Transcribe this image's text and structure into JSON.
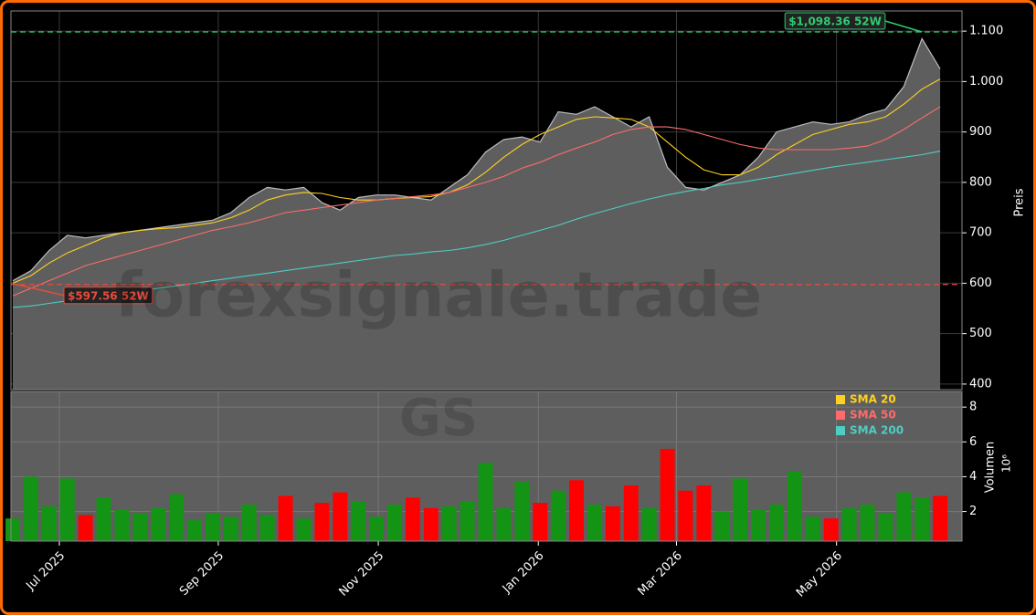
{
  "chart_data": {
    "type": "stock",
    "watermark": "forexsignale.trade",
    "ticker": "GS",
    "ylabel": "Preis",
    "y2label": "Volumen",
    "volume_offset": "10⁶",
    "x": [
      0,
      1,
      2,
      3,
      4,
      5,
      6,
      7,
      8,
      9,
      10,
      11,
      12,
      13,
      14,
      15,
      16,
      17,
      18,
      19,
      20,
      21,
      22,
      23,
      24,
      25,
      26,
      27,
      28,
      29,
      30,
      31,
      32,
      33,
      34,
      35,
      36,
      37,
      38,
      39,
      40,
      41,
      42,
      43,
      44,
      45,
      46,
      47,
      48,
      49,
      50,
      51
    ],
    "xlim": [
      -0.1,
      52.2
    ],
    "xticks": [
      {
        "value": 2.56,
        "label": "Jul 2025"
      },
      {
        "value": 11.3,
        "label": "Sep 2025"
      },
      {
        "value": 20.1,
        "label": "Nov 2025"
      },
      {
        "value": 28.9,
        "label": "Jan 2026"
      },
      {
        "value": 36.5,
        "label": "Mar 2026"
      },
      {
        "value": 45.3,
        "label": "May 2026"
      }
    ],
    "ylim": [
      389,
      1140
    ],
    "yticks": [
      400,
      500,
      600,
      700,
      800,
      900,
      {
        "value": 1000,
        "label": "1.000"
      },
      {
        "value": 1100,
        "label": "1.100"
      }
    ],
    "y2lim": [
      0.3,
      8.9
    ],
    "y2ticks": [
      2,
      4,
      6,
      8
    ],
    "price": {
      "color": "#bdbdbd",
      "fill": "#5e5e5e",
      "values": [
        605,
        625,
        665,
        695,
        690,
        695,
        700,
        705,
        710,
        715,
        720,
        725,
        740,
        770,
        790,
        785,
        790,
        760,
        745,
        770,
        775,
        775,
        770,
        765,
        790,
        815,
        860,
        885,
        890,
        880,
        940,
        935,
        950,
        930,
        910,
        930,
        830,
        790,
        785,
        800,
        815,
        850,
        900,
        910,
        920,
        915,
        920,
        935,
        945,
        990,
        1085,
        1025
      ]
    },
    "series": [
      {
        "name": "SMA 20",
        "color": "#ffd21f",
        "values": [
          600,
          615,
          640,
          660,
          675,
          690,
          700,
          705,
          708,
          710,
          715,
          720,
          730,
          745,
          765,
          775,
          780,
          778,
          770,
          765,
          765,
          768,
          770,
          772,
          780,
          795,
          820,
          850,
          875,
          895,
          910,
          925,
          930,
          928,
          925,
          910,
          880,
          850,
          825,
          815,
          815,
          830,
          855,
          875,
          895,
          905,
          915,
          920,
          930,
          955,
          985,
          1005
        ]
      },
      {
        "name": "SMA 50",
        "color": "#ff6b6b",
        "values": [
          575,
          590,
          605,
          620,
          635,
          645,
          655,
          665,
          675,
          685,
          695,
          705,
          712,
          720,
          730,
          740,
          745,
          750,
          755,
          760,
          765,
          768,
          772,
          775,
          780,
          790,
          800,
          812,
          828,
          840,
          855,
          868,
          880,
          895,
          905,
          910,
          910,
          905,
          895,
          885,
          875,
          868,
          865,
          865,
          865,
          865,
          868,
          872,
          885,
          905,
          928,
          950
        ]
      },
      {
        "name": "SMA 200",
        "color": "#4ecdc4",
        "values": [
          552,
          555,
          560,
          565,
          570,
          575,
          580,
          585,
          590,
          595,
          600,
          605,
          610,
          615,
          620,
          625,
          630,
          635,
          640,
          645,
          650,
          655,
          658,
          662,
          665,
          670,
          677,
          685,
          695,
          705,
          715,
          727,
          738,
          748,
          758,
          767,
          775,
          782,
          788,
          795,
          800,
          806,
          812,
          818,
          824,
          830,
          835,
          840,
          845,
          850,
          855,
          862
        ]
      }
    ],
    "volume": {
      "up_color": "#149414",
      "down_color": "#ff0000",
      "values": [
        1.6,
        4.0,
        2.3,
        3.9,
        1.8,
        2.8,
        2.1,
        1.9,
        2.2,
        3.0,
        1.5,
        1.9,
        1.7,
        2.4,
        1.8,
        2.9,
        1.6,
        2.5,
        3.1,
        2.6,
        1.7,
        2.4,
        2.8,
        2.2,
        2.3,
        2.6,
        4.8,
        2.2,
        3.7,
        2.5,
        3.2,
        3.8,
        2.4,
        2.3,
        3.5,
        2.2,
        5.6,
        3.2,
        3.5,
        2.0,
        3.9,
        2.1,
        2.4,
        4.3,
        1.7,
        1.6,
        2.2,
        2.4,
        1.9,
        3.1,
        2.8,
        2.9
      ]
    },
    "annotations": [
      {
        "text": "$1,098.36 52W",
        "value": 1098.36,
        "x": 50,
        "color": "#2ecc71"
      },
      {
        "text": "$597.56 52W",
        "value": 597.56,
        "x": 0,
        "color": "#e74c3c"
      }
    ],
    "grid": true
  }
}
